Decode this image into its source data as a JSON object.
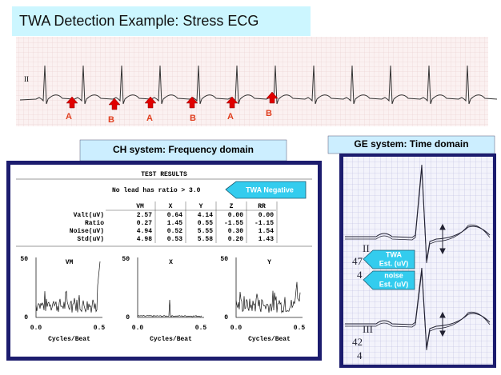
{
  "header": {
    "title": "TWA Detection Example:  Stress ECG"
  },
  "ecg_strip": {
    "lead": "II",
    "beat_labels": [
      "A",
      "B",
      "A",
      "B",
      "A",
      "B"
    ]
  },
  "ch_system": {
    "heading": "CH system: Frequency domain",
    "results_title": "TEST RESULTS",
    "summary": "No lead has ratio > 3.0",
    "callout": "TWA Negative",
    "table": {
      "columns": [
        "VM",
        "X",
        "Y",
        "Z",
        "RR"
      ],
      "rows": [
        [
          "Valt(uV)",
          "2.57",
          "0.64",
          "4.14",
          "0.00",
          "0.00"
        ],
        [
          "Ratio",
          "0.27",
          "1.45",
          "0.55",
          "-1.55",
          "-1.15"
        ],
        [
          "Noise(uV)",
          "4.94",
          "0.52",
          "5.55",
          "0.30",
          "1.54"
        ],
        [
          "Std(uV)",
          "4.98",
          "0.53",
          "5.58",
          "0.20",
          "1.43"
        ]
      ]
    },
    "spectra": [
      {
        "label": "VM",
        "y_max": "50",
        "y_min": "0",
        "x_min": "0.0",
        "x_max": "0.5",
        "x_label": "Cycles/Beat"
      },
      {
        "label": "X",
        "y_max": "50",
        "y_min": "0",
        "x_min": "0.0",
        "x_max": "0.5",
        "x_label": "Cycles/Beat"
      },
      {
        "label": "Y",
        "y_max": "50",
        "y_min": "0",
        "x_min": "0.0",
        "x_max": "0.5",
        "x_label": "Cycles/Beat"
      }
    ]
  },
  "ge_system": {
    "heading": "GE system: Time domain",
    "leads": [
      {
        "name": "II",
        "twa": "47",
        "noise": "4"
      },
      {
        "name": "III",
        "twa": "42",
        "noise": "4"
      }
    ],
    "callouts": [
      {
        "lines": [
          "TWA",
          "Est. (uV)"
        ]
      },
      {
        "lines": [
          "noise",
          "Est. (uV)"
        ]
      }
    ]
  }
}
